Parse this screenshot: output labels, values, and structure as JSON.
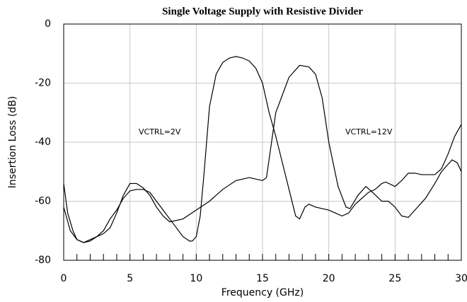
{
  "chart_data": {
    "type": "line",
    "title": "Single Voltage Supply with Resistive Divider",
    "xlabel": "Frequency (GHz)",
    "ylabel": "Insertion Loss (dB)",
    "annotations": [
      "VCTRL=2V",
      "VCTRL=12V"
    ],
    "xlim": [
      0,
      30
    ],
    "xticks": [
      0,
      5,
      10,
      15,
      20,
      25,
      30
    ],
    "ylim": [
      -80,
      0
    ],
    "yticks": [
      -80,
      -60,
      -40,
      -20,
      0
    ],
    "minor_tick_step": 1,
    "grid": true,
    "grid_color": "#c8c8c8",
    "series": [
      {
        "color": "#000000",
        "x": [
          0,
          0.5,
          1,
          1.5,
          2,
          2.5,
          3,
          3.5,
          4,
          4.5,
          5,
          5.5,
          6,
          6.5,
          7,
          7.5,
          8,
          8.5,
          9,
          9.5,
          9.7,
          10,
          10.3,
          10.6,
          11,
          11.5,
          12,
          12.5,
          13,
          13.5,
          14,
          14.5,
          15,
          15.5,
          16,
          16.5,
          17,
          17.5,
          17.8,
          18.2,
          18.5,
          19,
          20,
          20.5,
          21,
          21.5,
          22,
          22.5,
          23,
          23.5,
          24,
          24.3,
          25,
          25.5,
          26,
          26.5,
          27,
          28,
          28.5,
          29,
          29.5,
          30
        ],
        "values": [
          -62,
          -70,
          -73,
          -74,
          -73,
          -72,
          -70,
          -66,
          -63,
          -59,
          -56.5,
          -56,
          -56,
          -57,
          -60,
          -63,
          -66,
          -69,
          -72,
          -73.5,
          -73.5,
          -72,
          -65,
          -50,
          -28,
          -17,
          -13,
          -11.5,
          -11,
          -11.5,
          -12.5,
          -15,
          -20,
          -30,
          -38,
          -47,
          -56,
          -65,
          -66,
          -62,
          -61,
          -62,
          -63,
          -64,
          -65,
          -64,
          -61,
          -59,
          -57,
          -56,
          -54,
          -53.5,
          -55,
          -53,
          -50.5,
          -50.5,
          -51,
          -51,
          -49,
          -44,
          -38,
          -34
        ]
      },
      {
        "color": "#000000",
        "x": [
          0,
          0.3,
          0.7,
          1,
          1.5,
          2,
          2.5,
          3,
          3.5,
          4,
          4.5,
          5,
          5.5,
          6,
          6.5,
          7,
          7.5,
          8,
          9,
          10,
          11,
          12,
          13,
          14,
          15,
          15.3,
          16,
          17,
          17.8,
          18.5,
          19,
          19.5,
          20,
          20.7,
          21.3,
          21.6,
          22.2,
          22.8,
          23.3,
          24,
          24.5,
          25,
          25.5,
          26,
          26.5,
          27.3,
          28,
          28.5,
          29.3,
          29.7,
          30
        ],
        "values": [
          -54,
          -64,
          -70,
          -73,
          -74,
          -73.5,
          -72,
          -71,
          -69,
          -64,
          -58,
          -54,
          -54,
          -55.5,
          -58,
          -62,
          -65,
          -67,
          -66,
          -63,
          -60,
          -56,
          -53,
          -52,
          -53,
          -52,
          -30,
          -18,
          -14,
          -14.5,
          -17,
          -25,
          -40,
          -55,
          -62,
          -62.5,
          -58,
          -55,
          -57,
          -60,
          -60,
          -62,
          -65,
          -65.5,
          -63,
          -59,
          -54,
          -50,
          -46,
          -47,
          -50
        ]
      }
    ]
  }
}
